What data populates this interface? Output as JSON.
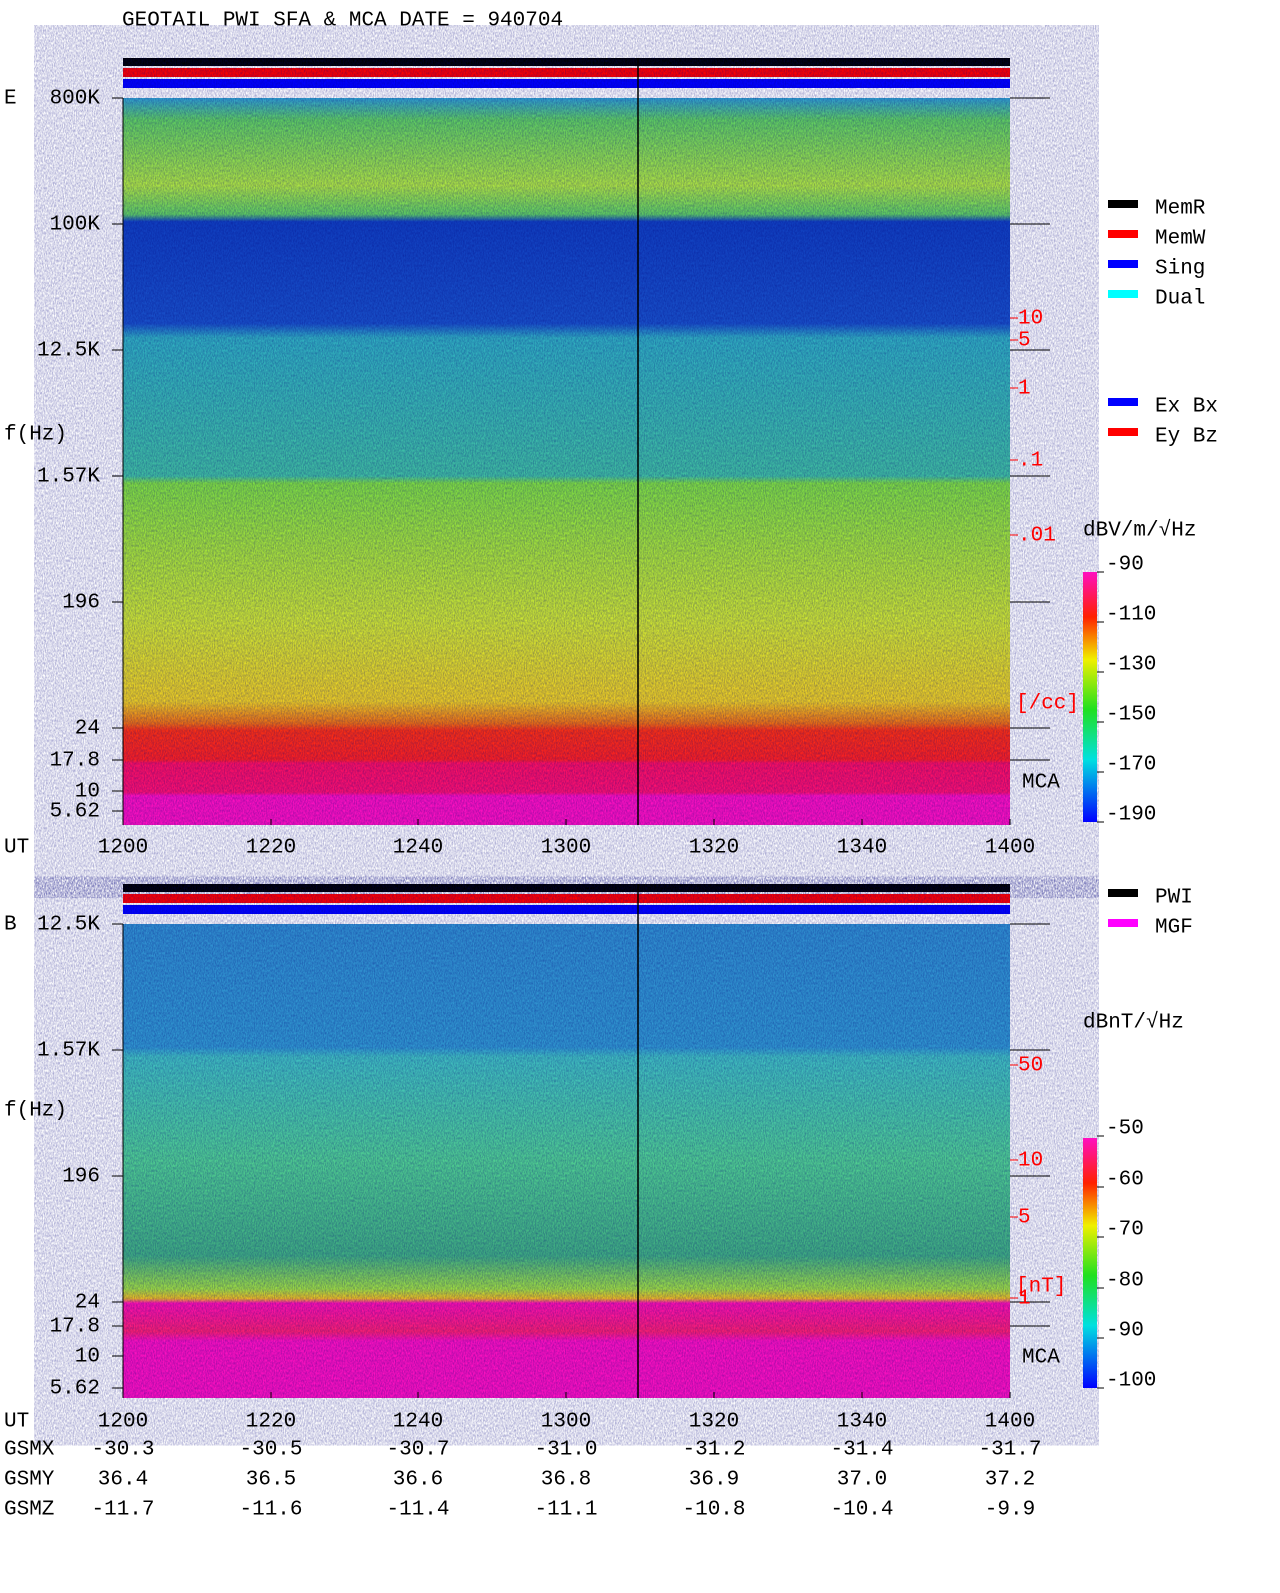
{
  "title": "GEOTAIL  PWI SFA & MCA   DATE = 940704",
  "panels": [
    {
      "label": "E",
      "ylabel": "f(Hz)",
      "yticks": [
        "800K",
        "100K",
        "12.5K",
        "1.57K",
        "196",
        "24",
        "17.8",
        "10",
        "5.62"
      ],
      "xlabel": "UT",
      "xticks": [
        "1200",
        "1220",
        "1240",
        "1300",
        "1320",
        "1340",
        "1400"
      ],
      "right_ticks": [
        "10",
        "5",
        "1",
        ".1",
        ".01"
      ],
      "right_unit": "[/cc]",
      "mca": "MCA",
      "colorbar_unit": "dBV/m/√Hz",
      "colorbar_ticks": [
        "-90",
        "-110",
        "-130",
        "-150",
        "-170",
        "-190"
      ]
    },
    {
      "label": "B",
      "ylabel": "f(Hz)",
      "yticks": [
        "12.5K",
        "1.57K",
        "196",
        "24",
        "17.8",
        "10",
        "5.62"
      ],
      "xlabel": "UT",
      "xticks": [
        "1200",
        "1220",
        "1240",
        "1300",
        "1320",
        "1340",
        "1400"
      ],
      "right_ticks": [
        "50",
        "10",
        "5",
        "1"
      ],
      "right_unit": "[nT]",
      "mca": "MCA",
      "colorbar_unit": "dBnT/√Hz",
      "colorbar_ticks": [
        "-50",
        "-60",
        "-70",
        "-80",
        "-90",
        "-100"
      ]
    }
  ],
  "legend_mode": [
    {
      "label": "MemR",
      "color": "#000000"
    },
    {
      "label": "MemW",
      "color": "#ff0000"
    },
    {
      "label": "Sing",
      "color": "#0000ff"
    },
    {
      "label": "Dual",
      "color": "#00ffff"
    }
  ],
  "legend_antenna": [
    {
      "label": "Ex Bx",
      "color": "#0000ff"
    },
    {
      "label": "Ey Bz",
      "color": "#ff0000"
    }
  ],
  "legend_source": [
    {
      "label": "PWI",
      "color": "#000000"
    },
    {
      "label": "MGF",
      "color": "#ff00ff"
    }
  ],
  "ephemeris": {
    "label": "UT",
    "rows": [
      {
        "name": "GSMX",
        "values": [
          "-30.3",
          "-30.5",
          "-30.7",
          "-31.0",
          "-31.2",
          "-31.4",
          "-31.7"
        ]
      },
      {
        "name": "GSMY",
        "values": [
          "36.4",
          "36.5",
          "36.6",
          "36.8",
          "36.9",
          "37.0",
          "37.2"
        ]
      },
      {
        "name": "GSMZ",
        "values": [
          "-11.7",
          "-11.6",
          "-11.4",
          "-11.1",
          "-10.8",
          "-10.4",
          "-9.9"
        ]
      }
    ]
  }
}
